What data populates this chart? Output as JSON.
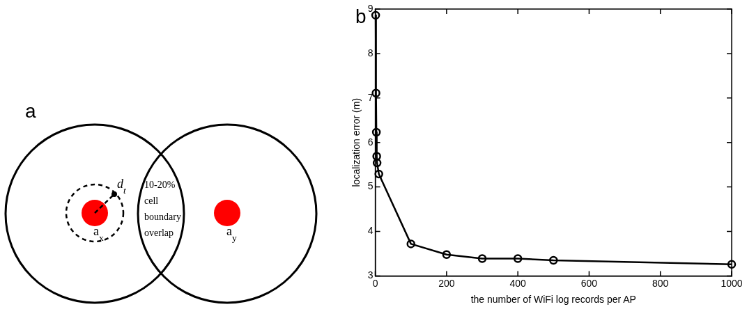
{
  "chart_data": [
    {
      "type": "other",
      "title": "a",
      "annotations": [
        "d$_{t}$",
        "10-20% cell boundary overlap",
        "a$_{x}$",
        "a$_{y}$"
      ]
    },
    {
      "type": "line",
      "title": "b",
      "xlabel": "the number of WiFi log records per AP",
      "ylabel": "localization error (m)",
      "series": [
        {
          "color": "#000000",
          "x": [
            1,
            2,
            3,
            4,
            5,
            10,
            100,
            200,
            300,
            400,
            500,
            1000
          ],
          "values": [
            8.86,
            7.11,
            6.23,
            5.69,
            5.54,
            5.29,
            3.72,
            3.48,
            3.39,
            3.39,
            3.35,
            3.26
          ]
        }
      ],
      "xlim": [
        0,
        1000
      ],
      "xticks": [
        0,
        200,
        400,
        600,
        800,
        1000
      ],
      "ylim": [
        3,
        9
      ],
      "yticks": [
        3,
        4,
        5,
        6,
        7,
        8,
        9
      ],
      "marker": "circle",
      "line_style": "solid"
    }
  ]
}
